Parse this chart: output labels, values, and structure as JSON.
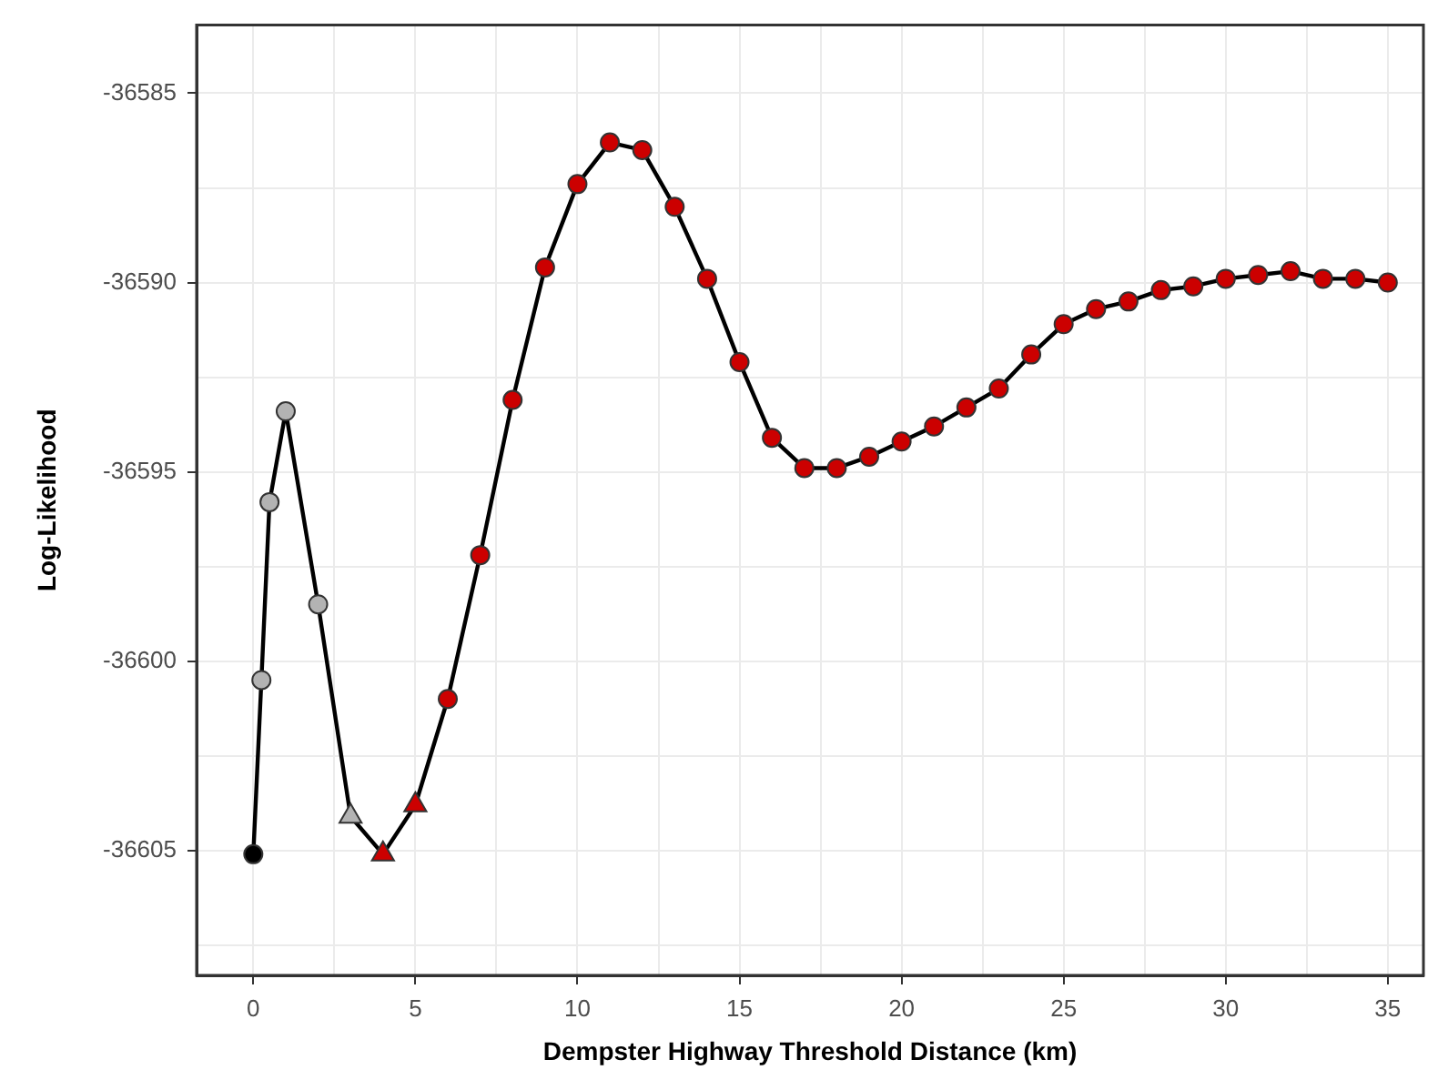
{
  "chart_data": {
    "type": "line",
    "xlabel": "Dempster Highway Threshold Distance (km)",
    "ylabel": "Log-Likelihood",
    "xlim": [
      -1.75,
      36.1
    ],
    "ylim": [
      -36608.3,
      -36583.2
    ],
    "xticks": [
      0,
      {
        "value": 2.5,
        "label": null
      },
      5,
      {
        "value": 7.5,
        "label": null
      },
      10,
      {
        "value": 12.5,
        "label": null
      },
      15,
      {
        "value": 17.5,
        "label": null
      },
      20,
      {
        "value": 22.5,
        "label": null
      },
      25,
      {
        "value": 27.5,
        "label": null
      },
      30,
      {
        "value": 32.5,
        "label": null
      },
      35
    ],
    "yticks": [
      {
        "value": -36607.5,
        "label": null
      },
      -36605,
      {
        "value": -36602.5,
        "label": null
      },
      -36600,
      {
        "value": -36597.5,
        "label": null
      },
      -36595,
      {
        "value": -36592.5,
        "label": null
      },
      -36590,
      {
        "value": -36587.5,
        "label": null
      },
      -36585
    ],
    "grid": true,
    "legend": false,
    "series": [
      {
        "marker": "none",
        "color": "#000000",
        "x": [
          0,
          0.25,
          0.5,
          1,
          2,
          3,
          4,
          5,
          6,
          7,
          8,
          9,
          10,
          11,
          12,
          13,
          14,
          15,
          16,
          17,
          18,
          19,
          20,
          21,
          22,
          23,
          24,
          25,
          26,
          27,
          28,
          29,
          30,
          31,
          32,
          33,
          34,
          35
        ],
        "values": [
          -36605.1,
          -36600.5,
          -36595.8,
          -36593.4,
          -36598.5,
          -36604.1,
          -36605.1,
          -36603.8,
          -36601.0,
          -36597.2,
          -36593.1,
          -36589.6,
          -36587.4,
          -36586.3,
          -36586.5,
          -36588.0,
          -36589.9,
          -36592.1,
          -36594.1,
          -36594.9,
          -36594.9,
          -36594.6,
          -36594.2,
          -36593.8,
          -36593.3,
          -36592.8,
          -36591.9,
          -36591.1,
          -36590.7,
          -36590.5,
          -36590.2,
          -36590.1,
          -36589.9,
          -36589.8,
          -36589.7,
          -36589.9,
          -36589.9,
          -36590.0
        ]
      },
      {
        "type": "scatter",
        "marker": "circle",
        "color": "#000000",
        "x": [
          0
        ],
        "values": [
          -36605.1
        ]
      },
      {
        "type": "scatter",
        "marker": "circle",
        "color": "#b3b3b3",
        "x": [
          0.25,
          0.5,
          1,
          2
        ],
        "values": [
          -36600.5,
          -36595.8,
          -36593.4,
          -36598.5
        ]
      },
      {
        "type": "scatter",
        "marker": "triangle",
        "color": "#b3b3b3",
        "x": [
          3
        ],
        "values": [
          -36604.1
        ]
      },
      {
        "type": "scatter",
        "marker": "triangle",
        "color": "#cc0000",
        "x": [
          4,
          5
        ],
        "values": [
          -36605.1,
          -36603.8
        ]
      },
      {
        "type": "scatter",
        "marker": "circle",
        "color": "#cc0000",
        "x": [
          6,
          7,
          8,
          9,
          10,
          11,
          12,
          13,
          14,
          15,
          16,
          17,
          18,
          19,
          20,
          21,
          22,
          23,
          24,
          25,
          26,
          27,
          28,
          29,
          30,
          31,
          32,
          33,
          34,
          35
        ],
        "values": [
          -36601.0,
          -36597.2,
          -36593.1,
          -36589.6,
          -36587.4,
          -36586.3,
          -36586.5,
          -36588.0,
          -36589.9,
          -36592.1,
          -36594.1,
          -36594.9,
          -36594.9,
          -36594.6,
          -36594.2,
          -36593.8,
          -36593.3,
          -36592.8,
          -36591.9,
          -36591.1,
          -36590.7,
          -36590.5,
          -36590.2,
          -36590.1,
          -36589.9,
          -36589.8,
          -36589.7,
          -36589.9,
          -36589.9,
          -36590.0
        ]
      }
    ]
  }
}
